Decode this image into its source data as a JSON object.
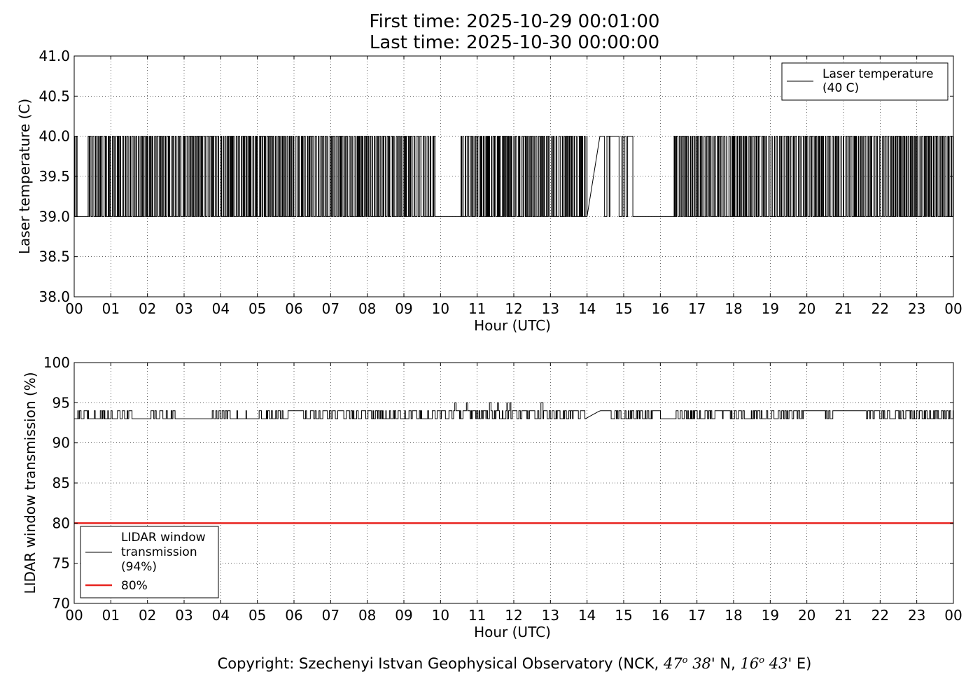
{
  "title": {
    "line1": "First time: 2025-10-29 00:01:00",
    "line2": "Last time: 2025-10-30 00:00:00"
  },
  "footer": {
    "prefix": "Copyright: Szechenyi Istvan Geophysical Observatory (NCK,",
    "lat_deg": "47",
    "lat_sup": "o",
    "lat_min": "38",
    "lat_suffix": "' N,",
    "lon_deg": "16",
    "lon_sup": "o",
    "lon_min": "43",
    "lon_suffix": "' E)"
  },
  "chart_data": [
    {
      "type": "line",
      "xlabel": "Hour (UTC)",
      "ylabel": "Laser temperature (C)",
      "ylim": [
        38.0,
        41.0
      ],
      "yticks": [
        "38.0",
        "38.5",
        "39.0",
        "39.5",
        "40.0",
        "40.5",
        "41.0"
      ],
      "xlim": [
        0,
        24
      ],
      "xticks": [
        "00",
        "01",
        "02",
        "03",
        "04",
        "05",
        "06",
        "07",
        "08",
        "09",
        "10",
        "11",
        "12",
        "13",
        "14",
        "15",
        "16",
        "17",
        "18",
        "19",
        "20",
        "21",
        "22",
        "23",
        "00"
      ],
      "grid": true,
      "legend_position": "top-right",
      "series": [
        {
          "name": "Laser temperature\n(40 C)",
          "legend_lines": [
            "Laser temperature",
            "(40 C)"
          ],
          "color": "#000000",
          "levels": [
            39.0,
            40.0
          ],
          "segments": [
            {
              "x": [
                0.0,
                0.08
              ],
              "pattern": "toggle"
            },
            {
              "x": [
                0.08,
                0.38
              ],
              "pattern": "flat-low"
            },
            {
              "x": [
                0.38,
                9.85
              ],
              "pattern": "toggle"
            },
            {
              "x": [
                9.85,
                10.5
              ],
              "pattern": "flat-low"
            },
            {
              "x": [
                10.5,
                14.0
              ],
              "pattern": "toggle"
            },
            {
              "x": [
                14.0,
                14.35
              ],
              "pattern": "ramp-up"
            },
            {
              "x": [
                14.35,
                15.25
              ],
              "pattern": "mostly-high"
            },
            {
              "x": [
                15.25,
                15.5
              ],
              "pattern": "flat-low"
            },
            {
              "x": [
                15.5,
                16.35
              ],
              "pattern": "flat-low"
            },
            {
              "x": [
                16.35,
                24.0
              ],
              "pattern": "toggle"
            }
          ]
        }
      ]
    },
    {
      "type": "line",
      "xlabel": "Hour (UTC)",
      "ylabel": "LIDAR window transmission (%)",
      "ylim": [
        70,
        100
      ],
      "yticks": [
        "70",
        "75",
        "80",
        "85",
        "90",
        "95",
        "100"
      ],
      "xlim": [
        0,
        24
      ],
      "xticks": [
        "00",
        "01",
        "02",
        "03",
        "04",
        "05",
        "06",
        "07",
        "08",
        "09",
        "10",
        "11",
        "12",
        "13",
        "14",
        "15",
        "16",
        "17",
        "18",
        "19",
        "20",
        "21",
        "22",
        "23",
        "00"
      ],
      "grid": true,
      "legend_position": "lower-left",
      "series": [
        {
          "name": "LIDAR window\ntransmission\n(94%)",
          "legend_lines": [
            "LIDAR window",
            "transmission",
            "(94%)"
          ],
          "color": "#000000",
          "base": 93,
          "high": 94,
          "spikes_95_hours": [
            10.4,
            10.7,
            11.0,
            11.35,
            11.55,
            11.8,
            11.9,
            12.75
          ],
          "flat_93_ranges": [
            [
              2.95,
              3.75
            ],
            [
              16.0,
              16.4
            ]
          ],
          "flat_94_ranges": [
            [
              5.85,
              6.25
            ],
            [
              14.35,
              14.6
            ],
            [
              19.9,
              20.5
            ],
            [
              20.9,
              21.6
            ]
          ],
          "ramp": [
            [
              13.95,
              93
            ],
            [
              14.35,
              94
            ]
          ]
        },
        {
          "name": "80%",
          "legend_lines": [
            "80%"
          ],
          "color": "#e8231f",
          "values": [
            80,
            80
          ],
          "x": [
            0,
            24
          ]
        }
      ]
    }
  ]
}
